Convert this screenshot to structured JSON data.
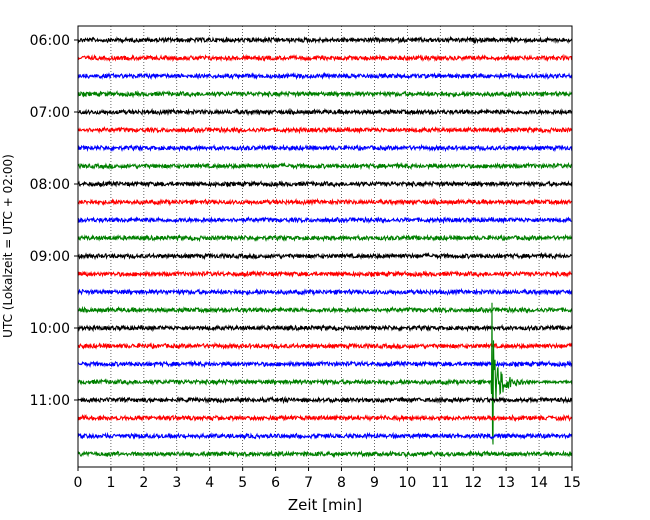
{
  "chart_data": {
    "type": "line",
    "title": "",
    "xlabel": "Zeit  [min]",
    "ylabel": "UTC (Lokalzeit = UTC + 02:00)",
    "xlim": [
      0,
      15
    ],
    "x_ticks": [
      0,
      1,
      2,
      3,
      4,
      5,
      6,
      7,
      8,
      9,
      10,
      11,
      12,
      13,
      14,
      15
    ],
    "y_tick_labels": [
      "06:00",
      "07:00",
      "08:00",
      "09:00",
      "10:00",
      "11:00"
    ],
    "trace_interval_min": 15,
    "grid": "vertical-dotted",
    "traces": [
      {
        "start": "06:00",
        "color": "#000000"
      },
      {
        "start": "06:15",
        "color": "#ff0000"
      },
      {
        "start": "06:30",
        "color": "#0000ff"
      },
      {
        "start": "06:45",
        "color": "#008000"
      },
      {
        "start": "07:00",
        "color": "#000000"
      },
      {
        "start": "07:15",
        "color": "#ff0000"
      },
      {
        "start": "07:30",
        "color": "#0000ff"
      },
      {
        "start": "07:45",
        "color": "#008000"
      },
      {
        "start": "08:00",
        "color": "#000000"
      },
      {
        "start": "08:15",
        "color": "#ff0000"
      },
      {
        "start": "08:30",
        "color": "#0000ff"
      },
      {
        "start": "08:45",
        "color": "#008000"
      },
      {
        "start": "09:00",
        "color": "#000000"
      },
      {
        "start": "09:15",
        "color": "#ff0000"
      },
      {
        "start": "09:30",
        "color": "#0000ff"
      },
      {
        "start": "09:45",
        "color": "#008000"
      },
      {
        "start": "10:00",
        "color": "#000000"
      },
      {
        "start": "10:15",
        "color": "#ff0000"
      },
      {
        "start": "10:30",
        "color": "#0000ff"
      },
      {
        "start": "10:45",
        "color": "#008000"
      },
      {
        "start": "11:00",
        "color": "#000000"
      },
      {
        "start": "11:15",
        "color": "#ff0000"
      },
      {
        "start": "11:30",
        "color": "#0000ff"
      },
      {
        "start": "11:45",
        "color": "#008000"
      }
    ],
    "event": {
      "trace_start": "10:45",
      "onset_min": 12.55,
      "peak_min": 12.6
    }
  }
}
